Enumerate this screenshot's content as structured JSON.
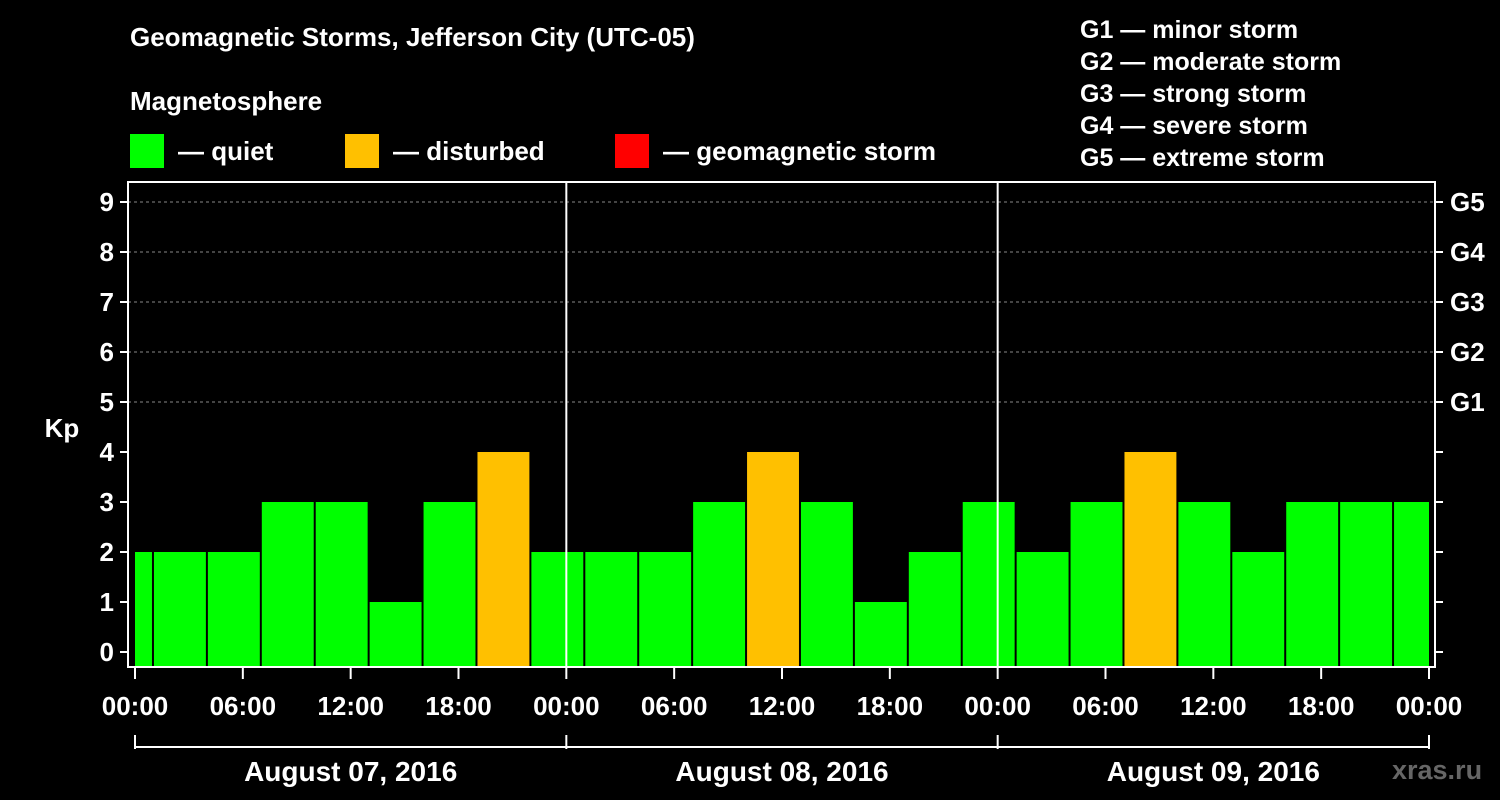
{
  "header": {
    "title": "Geomagnetic Storms, Jefferson City (UTC-05)",
    "subtitle": "Magnetosphere"
  },
  "legend": [
    {
      "label": "— quiet",
      "color": "#00ff00"
    },
    {
      "label": "— disturbed",
      "color": "#ffc000"
    },
    {
      "label": "— geomagnetic storm",
      "color": "#ff0000"
    }
  ],
  "storm_scale": [
    "G1 — minor storm",
    "G2 — moderate storm",
    "G3 — strong storm",
    "G4 — severe storm",
    "G5 — extreme storm"
  ],
  "brand": "xras.ru",
  "chart_data": {
    "type": "bar",
    "title": "Geomagnetic Storms, Jefferson City (UTC-05)",
    "ylabel": "Kp",
    "ylim": [
      0,
      9
    ],
    "yticks": [
      "0",
      "1",
      "2",
      "3",
      "4",
      "5",
      "6",
      "7",
      "8",
      "9"
    ],
    "right_ticks": [
      {
        "kp": 5,
        "label": "G1"
      },
      {
        "kp": 6,
        "label": "G2"
      },
      {
        "kp": 7,
        "label": "G3"
      },
      {
        "kp": 8,
        "label": "G4"
      },
      {
        "kp": 9,
        "label": "G5"
      }
    ],
    "x_range_hours": [
      0,
      72
    ],
    "xtick_labels": [
      "00:00",
      "06:00",
      "12:00",
      "18:00",
      "00:00",
      "06:00",
      "12:00",
      "18:00",
      "00:00",
      "06:00",
      "12:00",
      "18:00",
      "00:00"
    ],
    "days": [
      "August 07, 2016",
      "August 08, 2016",
      "August 09, 2016"
    ],
    "bars": [
      {
        "start_hour": 0,
        "end_hour": 1,
        "kp": 2,
        "status": "quiet"
      },
      {
        "start_hour": 1,
        "end_hour": 4,
        "kp": 2,
        "status": "quiet"
      },
      {
        "start_hour": 4,
        "end_hour": 7,
        "kp": 2,
        "status": "quiet"
      },
      {
        "start_hour": 7,
        "end_hour": 10,
        "kp": 3,
        "status": "quiet"
      },
      {
        "start_hour": 10,
        "end_hour": 13,
        "kp": 3,
        "status": "quiet"
      },
      {
        "start_hour": 13,
        "end_hour": 16,
        "kp": 1,
        "status": "quiet"
      },
      {
        "start_hour": 16,
        "end_hour": 19,
        "kp": 3,
        "status": "quiet"
      },
      {
        "start_hour": 19,
        "end_hour": 22,
        "kp": 4,
        "status": "disturbed"
      },
      {
        "start_hour": 22,
        "end_hour": 25,
        "kp": 2,
        "status": "quiet"
      },
      {
        "start_hour": 25,
        "end_hour": 28,
        "kp": 2,
        "status": "quiet"
      },
      {
        "start_hour": 28,
        "end_hour": 31,
        "kp": 2,
        "status": "quiet"
      },
      {
        "start_hour": 31,
        "end_hour": 34,
        "kp": 3,
        "status": "quiet"
      },
      {
        "start_hour": 34,
        "end_hour": 37,
        "kp": 4,
        "status": "disturbed"
      },
      {
        "start_hour": 37,
        "end_hour": 40,
        "kp": 3,
        "status": "quiet"
      },
      {
        "start_hour": 40,
        "end_hour": 43,
        "kp": 1,
        "status": "quiet"
      },
      {
        "start_hour": 43,
        "end_hour": 46,
        "kp": 2,
        "status": "quiet"
      },
      {
        "start_hour": 46,
        "end_hour": 49,
        "kp": 3,
        "status": "quiet"
      },
      {
        "start_hour": 49,
        "end_hour": 52,
        "kp": 2,
        "status": "quiet"
      },
      {
        "start_hour": 52,
        "end_hour": 55,
        "kp": 3,
        "status": "quiet"
      },
      {
        "start_hour": 55,
        "end_hour": 58,
        "kp": 4,
        "status": "disturbed"
      },
      {
        "start_hour": 58,
        "end_hour": 61,
        "kp": 3,
        "status": "quiet"
      },
      {
        "start_hour": 61,
        "end_hour": 64,
        "kp": 2,
        "status": "quiet"
      },
      {
        "start_hour": 64,
        "end_hour": 67,
        "kp": 3,
        "status": "quiet"
      },
      {
        "start_hour": 67,
        "end_hour": 70,
        "kp": 3,
        "status": "quiet"
      },
      {
        "start_hour": 70,
        "end_hour": 72,
        "kp": 3,
        "status": "quiet"
      }
    ],
    "colors": {
      "quiet": "#00ff00",
      "disturbed": "#ffc000",
      "storm": "#ff0000"
    }
  }
}
